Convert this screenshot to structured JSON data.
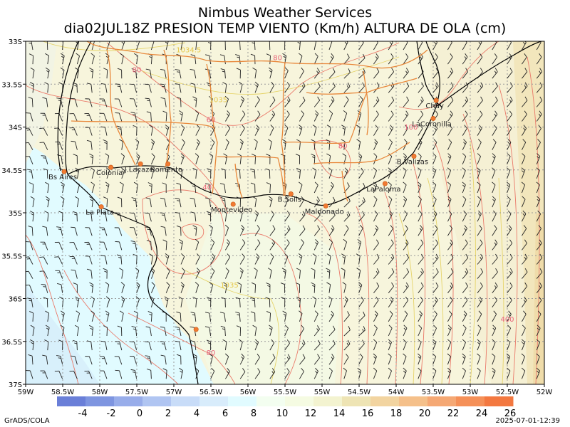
{
  "header": {
    "title": "Nimbus Weather Services",
    "subtitle": "dia02JUL18Z PRESION TEMP VIENTO (Km/h) ALTURA DE OLA (cm)"
  },
  "map": {
    "lat_range": [
      -37,
      -33
    ],
    "lon_range": [
      -59,
      -52
    ],
    "lat_ticks": [
      "33S",
      "33.5S",
      "34S",
      "34.5S",
      "35S",
      "35.5S",
      "36S",
      "36.5S",
      "37S"
    ],
    "lon_ticks": [
      "59W",
      "58.5W",
      "58W",
      "57.5W",
      "57W",
      "56.5W",
      "56W",
      "55.5W",
      "55W",
      "54.5W",
      "54W",
      "53.5W",
      "53W",
      "52.5W",
      "52W"
    ],
    "cities": [
      {
        "name": "Bs Aires",
        "lat": -34.52,
        "lon": -58.48
      },
      {
        "name": "Colonia",
        "lat": -34.47,
        "lon": -57.85
      },
      {
        "name": "J.Lacaze",
        "lat": -34.43,
        "lon": -57.45
      },
      {
        "name": "Romento",
        "lat": -34.43,
        "lon": -57.08
      },
      {
        "name": "La Plata",
        "lat": -34.93,
        "lon": -57.98
      },
      {
        "name": "Montevideo",
        "lat": -34.9,
        "lon": -56.2
      },
      {
        "name": "B.Solis",
        "lat": -34.78,
        "lon": -55.42
      },
      {
        "name": "Maldonado",
        "lat": -34.92,
        "lon": -54.95
      },
      {
        "name": "LaPaloma",
        "lat": -34.66,
        "lon": -54.15
      },
      {
        "name": "B.Valizas",
        "lat": -34.34,
        "lon": -53.76
      },
      {
        "name": "LaCoronilla",
        "lat": -33.9,
        "lon": -53.5
      },
      {
        "name": "Chuy",
        "lat": -33.69,
        "lon": -53.46
      },
      {
        "name": "",
        "lat": -36.36,
        "lon": -56.7
      }
    ],
    "wave_labels": [
      {
        "text": "80",
        "lat": -33.36,
        "lon": -57.5
      },
      {
        "text": "80",
        "lat": -33.22,
        "lon": -55.6
      },
      {
        "text": "60",
        "lat": -33.94,
        "lon": -56.5
      },
      {
        "text": "80",
        "lat": -34.25,
        "lon": -54.72
      },
      {
        "text": "40",
        "lat": -34.73,
        "lon": -56.55
      },
      {
        "text": "100",
        "lat": -34.03,
        "lon": -53.8
      },
      {
        "text": "80",
        "lat": -36.66,
        "lon": -56.5
      },
      {
        "text": "400",
        "lat": -36.27,
        "lon": -52.5
      }
    ],
    "pressure_labels": [
      {
        "text": "1034.5",
        "lat": -33.13,
        "lon": -56.8
      },
      {
        "text": "1035",
        "lat": -33.71,
        "lon": -56.4
      },
      {
        "text": "1035",
        "lat": -35.87,
        "lon": -56.25
      }
    ]
  },
  "colorbar": {
    "labels": [
      "-4",
      "-2",
      "0",
      "2",
      "4",
      "6",
      "8",
      "10",
      "12",
      "14",
      "16",
      "18",
      "20",
      "22",
      "24",
      "26"
    ],
    "colors": [
      "#6a7fd8",
      "#7e95e0",
      "#98adea",
      "#b0c5f2",
      "#c8dcf8",
      "#d8ecfb",
      "#e1fbff",
      "#f3fef0",
      "#f5fbe2",
      "#f3f3d0",
      "#eee4b4",
      "#f2d4a0",
      "#f5c08a",
      "#f5a874",
      "#f59058",
      "#f37840"
    ]
  },
  "footer": {
    "left": "GrADS/COLA",
    "right": "2025-07-01-12:39"
  }
}
